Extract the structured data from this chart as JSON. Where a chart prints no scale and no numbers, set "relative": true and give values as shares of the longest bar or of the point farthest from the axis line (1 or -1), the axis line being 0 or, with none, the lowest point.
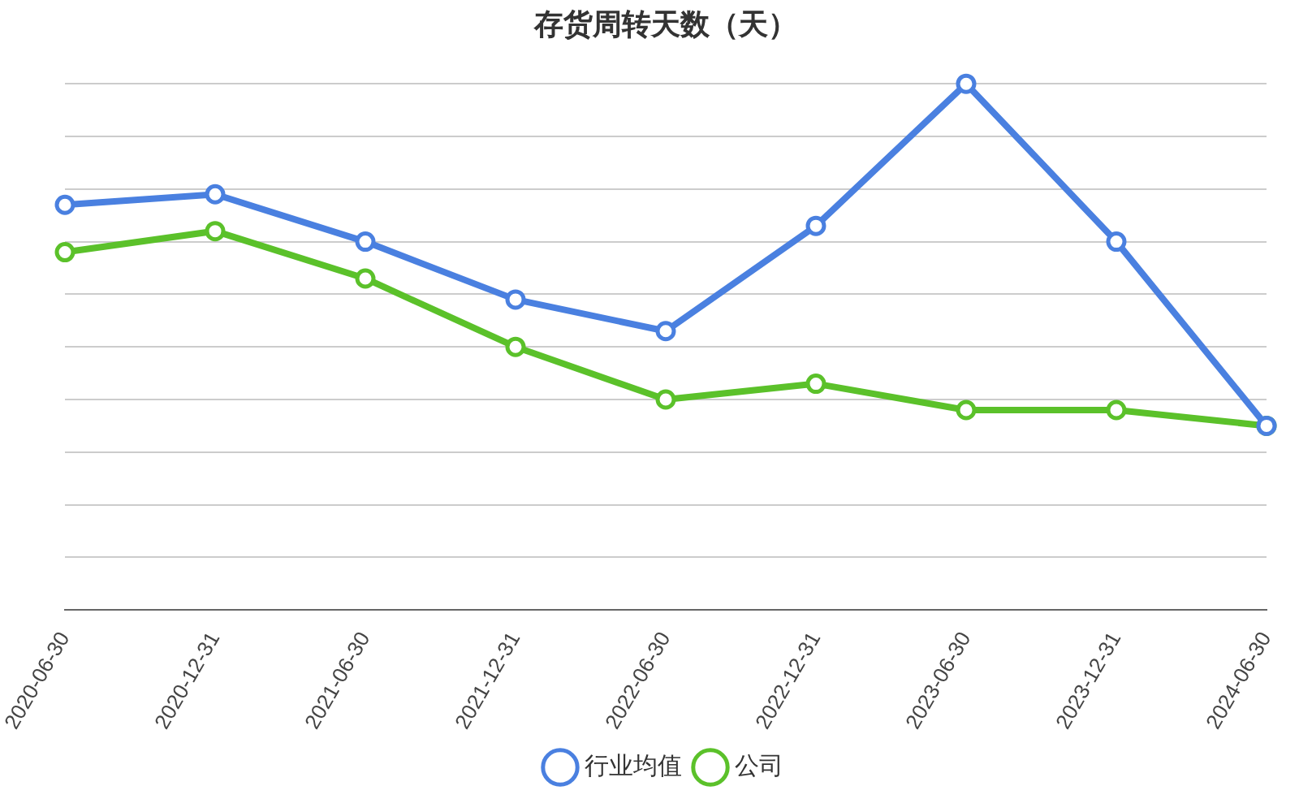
{
  "chart_data": {
    "type": "line",
    "title": "存货周转天数（天）",
    "relative": true,
    "grid": "y",
    "legend": "bottom",
    "marker": "circle",
    "line_style": "solid",
    "categories": [
      "2020-06-30",
      "2020-12-31",
      "2021-06-30",
      "2021-12-31",
      "2022-06-30",
      "2022-12-31",
      "2023-06-30",
      "2023-12-31",
      "2024-06-30"
    ],
    "series": [
      {
        "name": "公司",
        "color": "#5bc12a",
        "values": [
          0.68,
          0.72,
          0.63,
          0.5,
          0.4,
          0.43,
          0.38,
          0.38,
          0.35
        ]
      },
      {
        "name": "行业均值",
        "color": "#4a80e0",
        "values": [
          0.77,
          0.79,
          0.7,
          0.59,
          0.53,
          0.73,
          1,
          0.7,
          0.35
        ]
      }
    ]
  }
}
